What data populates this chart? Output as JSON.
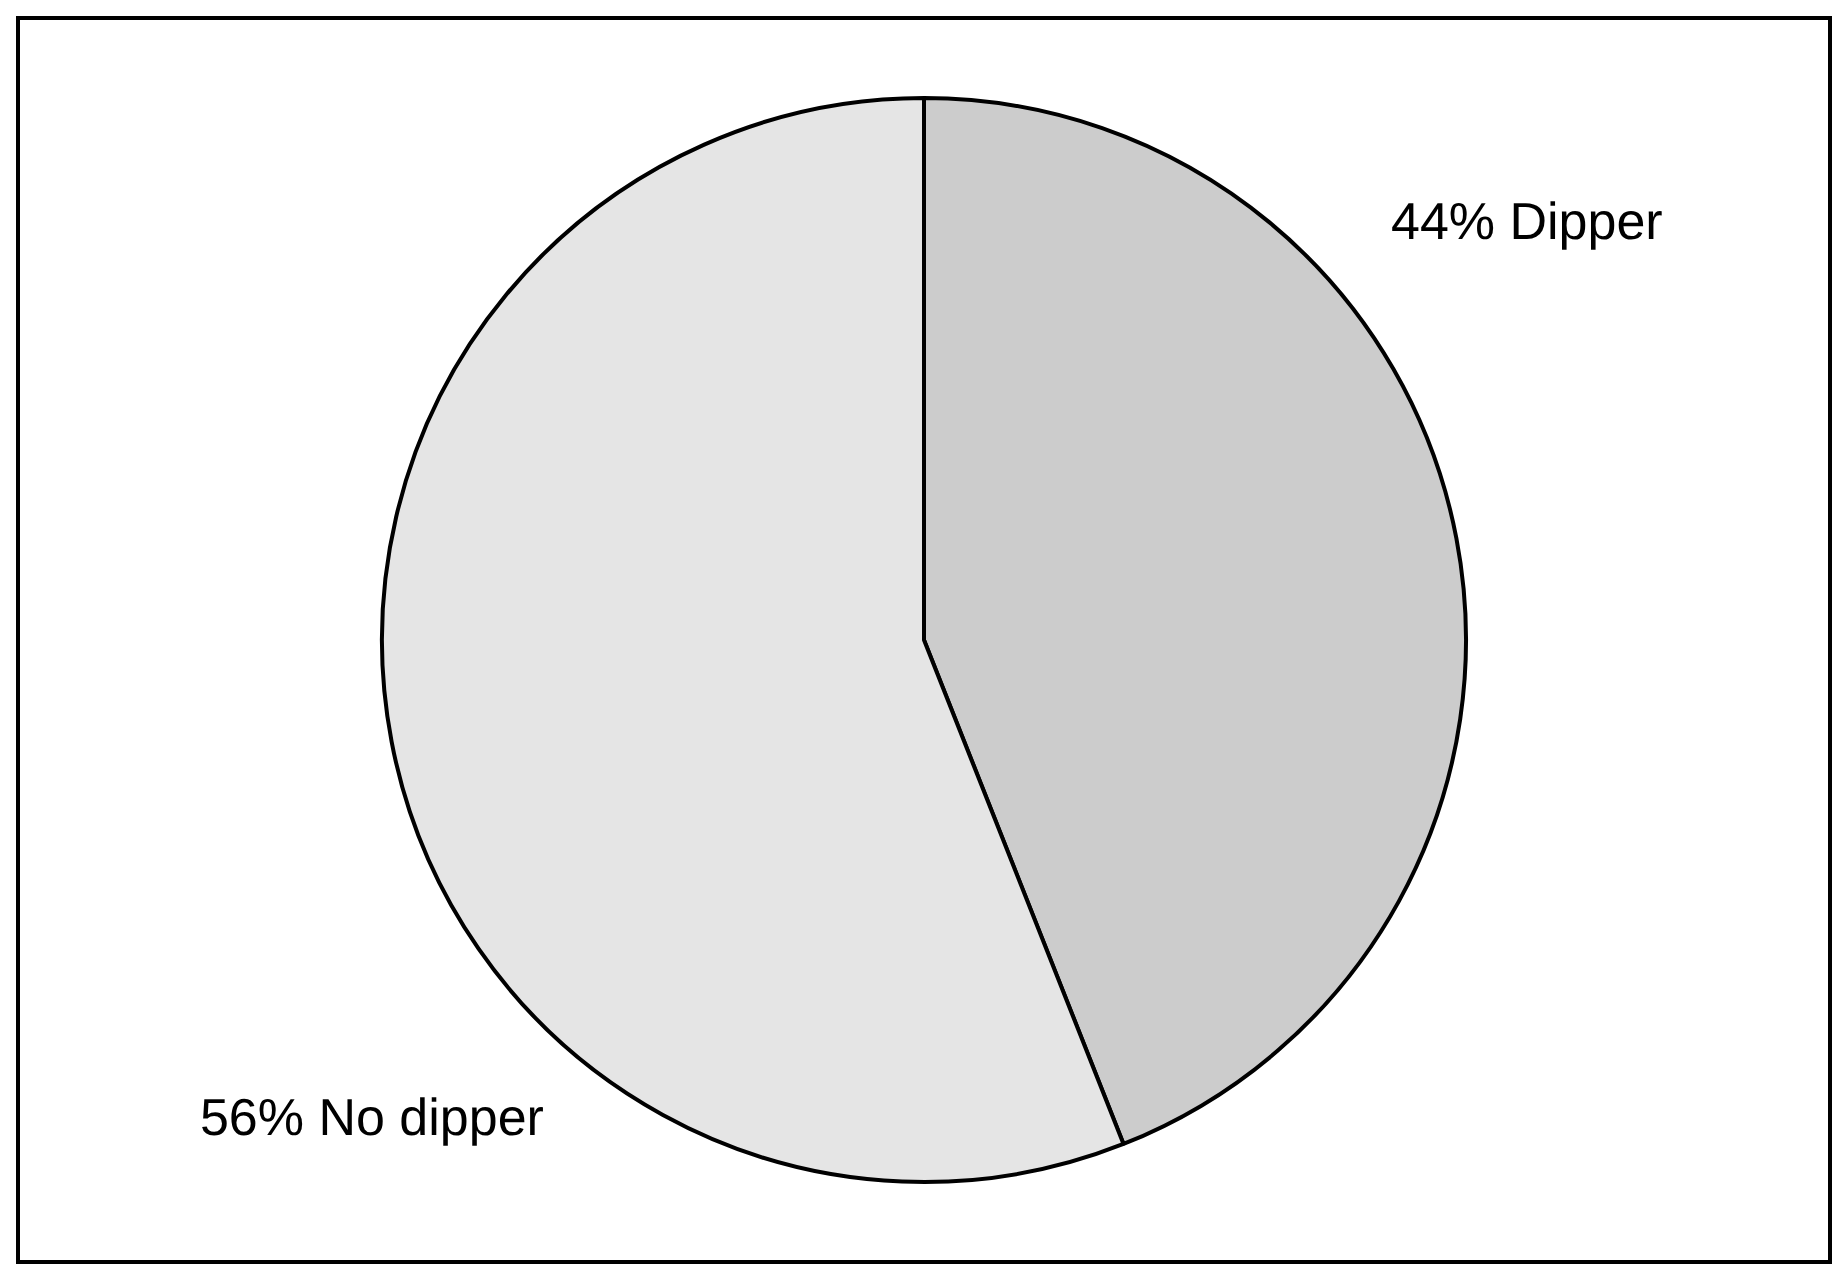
{
  "chart_data": {
    "type": "pie",
    "categories": [
      "Dipper",
      "No dipper"
    ],
    "values": [
      44,
      56
    ],
    "value_labels": [
      "44%",
      "56%"
    ],
    "colors": [
      "#cccccc",
      "#e5e5e5"
    ],
    "legend": false
  }
}
